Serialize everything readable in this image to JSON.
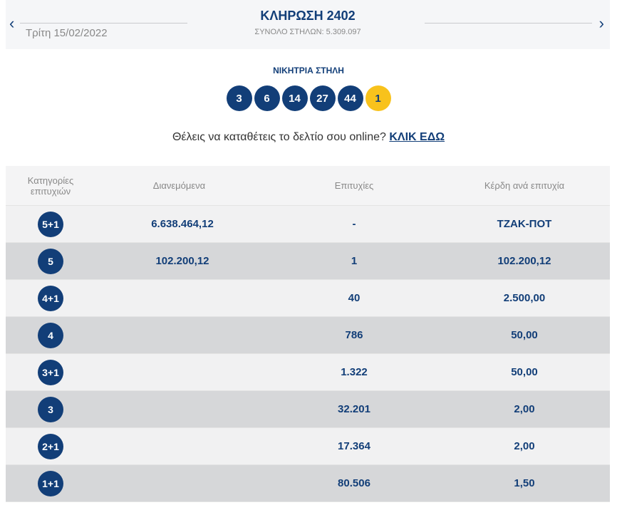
{
  "header": {
    "title": "ΚΛΗΡΩΣΗ 2402",
    "date": "Τρίτη 15/02/2022",
    "total_columns": "ΣΥΝΟΛΟ ΣΤΗΛΩΝ: 5.309.097",
    "prev_icon": "chevron-left-icon",
    "next_icon": "chevron-right-icon",
    "prev": "‹",
    "next": "›"
  },
  "winning": {
    "label": "ΝΙΚΗΤΡΙΑ ΣΤΗΛΗ",
    "numbers": [
      "3",
      "6",
      "14",
      "27",
      "44"
    ],
    "joker": "1",
    "colors": {
      "main": "#123e78",
      "joker": "#f8c21c"
    }
  },
  "cta": {
    "text": "Θέλεις να καταθέτεις το δελτίο σου online?",
    "link": "ΚΛΙΚ ΕΔΩ"
  },
  "table": {
    "headers": [
      "Κατηγορίες επιτυχιών",
      "Διανεμόμενα",
      "Επιτυχίες",
      "Κέρδη ανά επιτυχία"
    ],
    "rows": [
      {
        "cat": "5+1",
        "dist": "6.638.464,12",
        "wins": "-",
        "prize": "ΤΖΑΚ-ΠΟΤ"
      },
      {
        "cat": "5",
        "dist": "102.200,12",
        "wins": "1",
        "prize": "102.200,12"
      },
      {
        "cat": "4+1",
        "dist": "",
        "wins": "40",
        "prize": "2.500,00"
      },
      {
        "cat": "4",
        "dist": "",
        "wins": "786",
        "prize": "50,00"
      },
      {
        "cat": "3+1",
        "dist": "",
        "wins": "1.322",
        "prize": "50,00"
      },
      {
        "cat": "3",
        "dist": "",
        "wins": "32.201",
        "prize": "2,00"
      },
      {
        "cat": "2+1",
        "dist": "",
        "wins": "17.364",
        "prize": "2,00"
      },
      {
        "cat": "1+1",
        "dist": "",
        "wins": "80.506",
        "prize": "1,50"
      }
    ]
  }
}
